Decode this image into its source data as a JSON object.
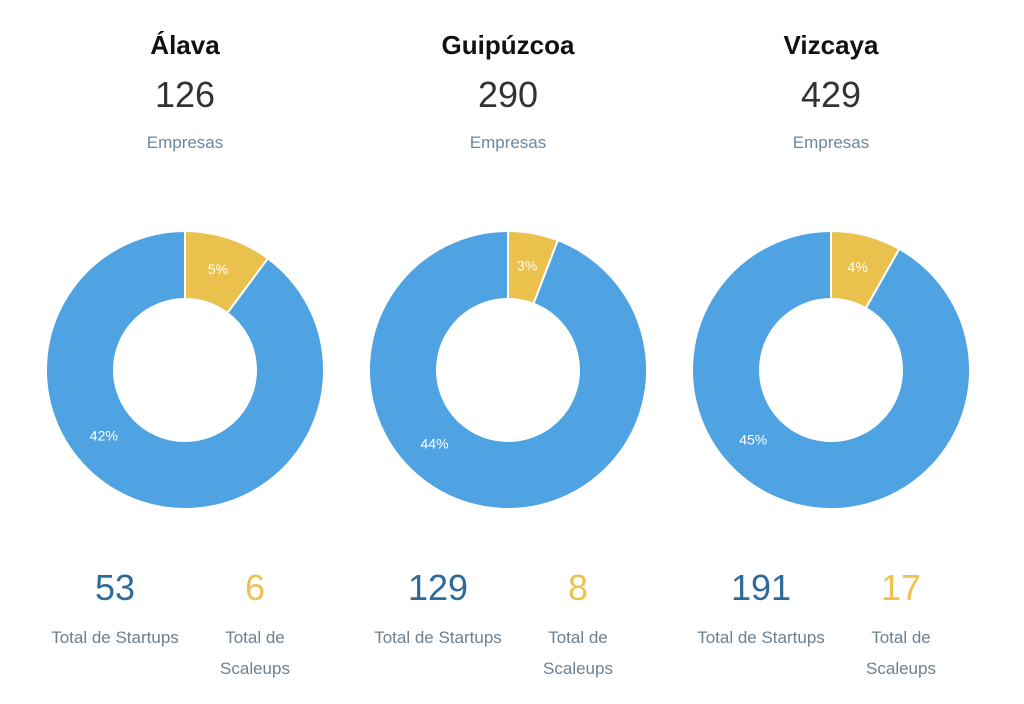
{
  "colors": {
    "startups": "#4fa3e3",
    "scaleups": "#eac14d",
    "startups_text": "#2f6b9a",
    "scaleups_text": "#ecc34e"
  },
  "chart_data": {
    "type": "pie",
    "variant": "donut",
    "charts": [
      {
        "title": "Álava",
        "total": "126",
        "total_label": "Empresas",
        "slices": [
          {
            "name": "Startups",
            "value": 53,
            "label": "42%"
          },
          {
            "name": "Scaleups",
            "value": 6,
            "label": "5%"
          }
        ]
      },
      {
        "title": "Guipúzcoa",
        "total": "290",
        "total_label": "Empresas",
        "slices": [
          {
            "name": "Startups",
            "value": 129,
            "label": "44%"
          },
          {
            "name": "Scaleups",
            "value": 8,
            "label": "3%"
          }
        ]
      },
      {
        "title": "Vizcaya",
        "total": "429",
        "total_label": "Empresas",
        "slices": [
          {
            "name": "Startups",
            "value": 191,
            "label": "45%"
          },
          {
            "name": "Scaleups",
            "value": 17,
            "label": "4%"
          }
        ]
      }
    ]
  },
  "regions": [
    {
      "title": "Álava",
      "count": "126",
      "count_label": "Empresas",
      "startups": {
        "value": "53",
        "label": "Total de Startups"
      },
      "scaleups": {
        "value": "6",
        "label_line1": "Total de",
        "label_line2": "Scaleups"
      }
    },
    {
      "title": "Guipúzcoa",
      "count": "290",
      "count_label": "Empresas",
      "startups": {
        "value": "129",
        "label": "Total de Startups"
      },
      "scaleups": {
        "value": "8",
        "label_line1": "Total de",
        "label_line2": "Scaleups"
      }
    },
    {
      "title": "Vizcaya",
      "count": "429",
      "count_label": "Empresas",
      "startups": {
        "value": "191",
        "label": "Total de Startups"
      },
      "scaleups": {
        "value": "17",
        "label_line1": "Total de",
        "label_line2": "Scaleups"
      }
    }
  ]
}
